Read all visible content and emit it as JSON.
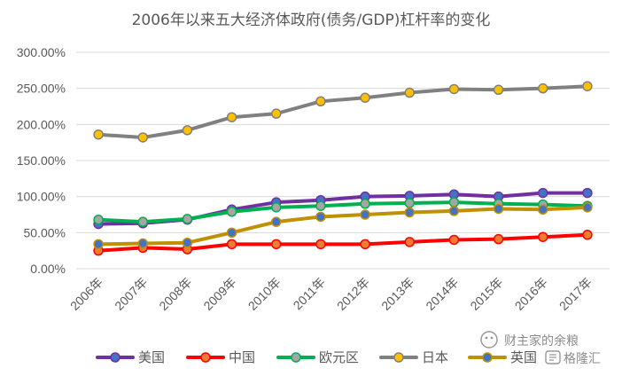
{
  "chart_data": {
    "type": "line",
    "title": "2006年以来五大经济体政府(债务/GDP)杠杆率的变化",
    "x": [
      "2006年",
      "2007年",
      "2008年",
      "2009年",
      "2010年",
      "2011年",
      "2012年",
      "2013年",
      "2014年",
      "2015年",
      "2016年",
      "2017年"
    ],
    "yticks": [
      "0.00%",
      "50.00%",
      "100.00%",
      "150.00%",
      "200.00%",
      "250.00%",
      "300.00%"
    ],
    "ylim": [
      0,
      300
    ],
    "grid": true,
    "legend_position": "bottom",
    "series": [
      {
        "name": "美国",
        "line_color": "#7030a0",
        "marker_color": "#4472c4",
        "values": [
          62,
          63,
          68,
          82,
          92,
          95,
          100,
          101,
          103,
          100,
          105,
          105
        ]
      },
      {
        "name": "中国",
        "line_color": "#ff0000",
        "marker_color": "#ed7d31",
        "values": [
          25,
          29,
          27,
          34,
          34,
          34,
          34,
          37,
          40,
          41,
          44,
          47
        ]
      },
      {
        "name": "欧元区",
        "line_color": "#00b050",
        "marker_color": "#a5a5a5",
        "values": [
          68,
          65,
          69,
          79,
          85,
          87,
          90,
          91,
          92,
          90,
          89,
          87
        ]
      },
      {
        "name": "日本",
        "line_color": "#808080",
        "marker_color": "#ffc000",
        "values": [
          186,
          182,
          192,
          210,
          215,
          232,
          237,
          244,
          249,
          248,
          250,
          253
        ]
      },
      {
        "name": "英国",
        "line_color": "#bf9000",
        "marker_color": "#4472c4",
        "values": [
          34,
          35,
          36,
          50,
          65,
          72,
          75,
          78,
          80,
          83,
          82,
          85
        ]
      }
    ]
  },
  "watermark": {
    "text1": "财主家的余粮",
    "text2": "格隆汇"
  }
}
